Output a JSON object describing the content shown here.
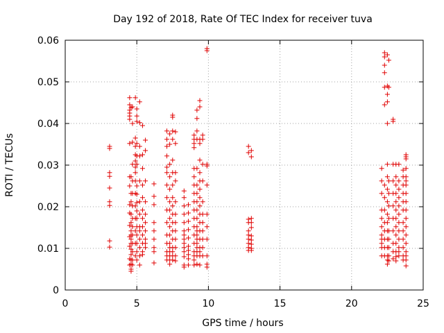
{
  "chart_data": {
    "type": "scatter",
    "title": "Day 192 of 2018, Rate Of TEC Index for receiver tuva",
    "xlabel": "GPS time / hours",
    "ylabel": "ROTI / TECUs",
    "xlim": [
      0,
      25
    ],
    "ylim": [
      0,
      0.06
    ],
    "xticks": [
      0,
      5,
      10,
      15,
      20,
      25
    ],
    "yticks": [
      0,
      0.01,
      0.02,
      0.03,
      0.04,
      0.05,
      0.06
    ],
    "xtick_labels": [
      "0",
      "5",
      "10",
      "15",
      "20",
      "25"
    ],
    "ytick_labels": [
      "0",
      "0.01",
      "0.02",
      "0.03",
      "0.04",
      "0.05",
      "0.06"
    ],
    "grid": true,
    "marker": "+",
    "color": "#e00000",
    "series": [
      {
        "x": [
          3.1,
          3.1,
          3.1,
          3.1,
          3.1,
          3.1,
          3.1,
          3.1,
          3.1,
          4.5,
          4.5,
          4.5,
          4.5,
          4.5,
          4.5,
          4.5,
          4.5,
          4.5,
          4.5,
          4.5,
          4.5,
          4.5,
          4.5,
          4.5,
          4.5,
          4.6,
          4.6,
          4.6,
          4.6,
          4.6,
          4.6,
          4.6,
          4.6,
          4.6,
          4.6,
          4.6,
          4.6,
          4.6,
          4.6,
          4.6,
          4.6,
          4.7,
          4.7,
          4.7,
          4.7,
          4.7,
          4.7,
          4.7,
          4.7,
          4.7,
          4.7,
          4.7,
          4.7,
          4.7,
          4.7,
          4.9,
          4.9,
          4.9,
          4.9,
          4.9,
          4.9,
          4.9,
          4.9,
          4.9,
          4.9,
          4.9,
          4.9,
          4.9,
          4.9,
          5.0,
          5.0,
          5.0,
          5.0,
          5.0,
          5.0,
          5.0,
          5.0,
          5.0,
          5.0,
          5.0,
          5.0,
          5.0,
          5.0,
          5.0,
          5.0,
          5.2,
          5.2,
          5.2,
          5.2,
          5.2,
          5.2,
          5.2,
          5.2,
          5.2,
          5.2,
          5.2,
          5.2,
          5.2,
          5.4,
          5.4,
          5.4,
          5.4,
          5.4,
          5.4,
          5.4,
          5.4,
          5.4,
          5.4,
          5.4,
          5.4,
          5.6,
          5.6,
          5.6,
          5.6,
          5.6,
          5.6,
          5.6,
          5.6,
          5.6,
          5.6,
          6.2,
          6.2,
          6.2,
          6.2,
          6.2,
          6.2,
          6.2,
          6.2,
          6.2,
          7.1,
          7.1,
          7.1,
          7.1,
          7.1,
          7.1,
          7.1,
          7.1,
          7.1,
          7.1,
          7.1,
          7.1,
          7.1,
          7.1,
          7.1,
          7.3,
          7.3,
          7.3,
          7.3,
          7.3,
          7.3,
          7.3,
          7.3,
          7.3,
          7.3,
          7.3,
          7.3,
          7.3,
          7.3,
          7.3,
          7.3,
          7.5,
          7.5,
          7.5,
          7.5,
          7.5,
          7.5,
          7.5,
          7.5,
          7.5,
          7.5,
          7.5,
          7.5,
          7.5,
          7.5,
          7.5,
          7.5,
          7.5,
          7.7,
          7.7,
          7.7,
          7.7,
          7.7,
          7.7,
          7.7,
          7.7,
          7.7,
          7.7,
          7.7,
          7.7,
          8.3,
          8.3,
          8.3,
          8.3,
          8.3,
          8.3,
          8.3,
          8.3,
          8.3,
          8.3,
          8.3,
          8.3,
          8.3,
          8.3,
          8.6,
          8.6,
          8.6,
          8.6,
          8.6,
          8.6,
          8.6,
          8.6,
          8.6,
          8.6,
          9.0,
          9.0,
          9.0,
          9.0,
          9.0,
          9.0,
          9.0,
          9.0,
          9.0,
          9.0,
          9.0,
          9.0,
          9.0,
          9.0,
          9.0,
          9.0,
          9.0,
          9.0,
          9.2,
          9.2,
          9.2,
          9.2,
          9.2,
          9.2,
          9.2,
          9.2,
          9.2,
          9.2,
          9.2,
          9.2,
          9.2,
          9.2,
          9.2,
          9.2,
          9.2,
          9.2,
          9.2,
          9.4,
          9.4,
          9.4,
          9.4,
          9.4,
          9.4,
          9.4,
          9.4,
          9.4,
          9.4,
          9.4,
          9.4,
          9.4,
          9.4,
          9.4,
          9.4,
          9.4,
          9.4,
          9.6,
          9.6,
          9.6,
          9.6,
          9.6,
          9.6,
          9.6,
          9.6,
          9.6,
          9.6,
          9.6,
          9.9,
          9.9,
          9.9,
          9.9,
          9.9,
          9.9,
          9.9,
          9.9,
          9.9,
          9.9,
          9.9,
          12.8,
          12.8,
          12.8,
          12.8,
          12.8,
          12.8,
          12.8,
          12.8,
          12.8,
          12.8,
          13.0,
          13.0,
          13.0,
          13.0,
          13.0,
          13.0,
          13.0,
          13.0,
          13.0,
          13.0,
          22.1,
          22.1,
          22.1,
          22.1,
          22.1,
          22.1,
          22.1,
          22.1,
          22.1,
          22.1,
          22.1,
          22.3,
          22.3,
          22.3,
          22.3,
          22.3,
          22.3,
          22.3,
          22.3,
          22.3,
          22.3,
          22.3,
          22.3,
          22.3,
          22.3,
          22.5,
          22.5,
          22.5,
          22.5,
          22.5,
          22.5,
          22.5,
          22.5,
          22.5,
          22.5,
          22.5,
          22.5,
          22.5,
          22.5,
          22.5,
          22.5,
          22.5,
          22.6,
          22.6,
          22.6,
          22.6,
          22.6,
          22.6,
          22.6,
          22.6,
          22.6,
          22.6,
          22.6,
          22.9,
          22.9,
          22.9,
          22.9,
          22.9,
          22.9,
          22.9,
          22.9,
          22.9,
          22.9,
          22.9,
          23.1,
          23.1,
          23.1,
          23.1,
          23.1,
          23.1,
          23.1,
          23.1,
          23.1,
          23.1,
          23.1,
          23.1,
          23.1,
          23.3,
          23.3,
          23.3,
          23.3,
          23.3,
          23.3,
          23.3,
          23.3,
          23.3,
          23.3,
          23.3,
          23.3,
          23.6,
          23.6,
          23.6,
          23.6,
          23.6,
          23.6,
          23.6,
          23.6,
          23.6,
          23.6,
          23.6,
          23.6,
          23.8,
          23.8,
          23.8,
          23.8,
          23.8,
          23.8,
          23.8,
          23.8,
          23.8,
          23.8,
          23.8,
          23.8,
          23.8,
          23.8,
          23.8,
          23.8,
          23.8,
          23.8
        ],
        "y": [
          0.0345,
          0.034,
          0.0282,
          0.0273,
          0.0245,
          0.0212,
          0.0203,
          0.0118,
          0.0103,
          0.0462,
          0.0445,
          0.0432,
          0.0425,
          0.0418,
          0.041,
          0.0352,
          0.0272,
          0.025,
          0.0205,
          0.0185,
          0.0155,
          0.0128,
          0.0105,
          0.0075,
          0.006,
          0.0438,
          0.0272,
          0.0232,
          0.0212,
          0.0182,
          0.0162,
          0.0142,
          0.0132,
          0.0122,
          0.0112,
          0.0098,
          0.0085,
          0.0072,
          0.0062,
          0.005,
          0.0045,
          0.044,
          0.04,
          0.0355,
          0.0302,
          0.0262,
          0.0232,
          0.0202,
          0.0172,
          0.0152,
          0.0132,
          0.0112,
          0.0092,
          0.0072,
          0.006,
          0.0462,
          0.0365,
          0.0345,
          0.0325,
          0.031,
          0.0295,
          0.0282,
          0.0262,
          0.0232,
          0.0202,
          0.0172,
          0.0142,
          0.0112,
          0.0082,
          0.0435,
          0.0418,
          0.0405,
          0.0352,
          0.0322,
          0.0302,
          0.025,
          0.023,
          0.021,
          0.019,
          0.0172,
          0.0152,
          0.0132,
          0.0112,
          0.0092,
          0.0072,
          0.0452,
          0.0402,
          0.0345,
          0.0322,
          0.0262,
          0.0212,
          0.0182,
          0.0152,
          0.0142,
          0.0122,
          0.0102,
          0.0082,
          0.006,
          0.0395,
          0.0325,
          0.0292,
          0.0252,
          0.0222,
          0.0192,
          0.0172,
          0.0152,
          0.0132,
          0.0112,
          0.0092,
          0.0085,
          0.036,
          0.0335,
          0.0262,
          0.0212,
          0.0182,
          0.0162,
          0.0142,
          0.0122,
          0.0112,
          0.0102,
          0.0255,
          0.0225,
          0.0205,
          0.0162,
          0.0142,
          0.0122,
          0.0102,
          0.0092,
          0.0065,
          0.0382,
          0.0362,
          0.0345,
          0.0322,
          0.0295,
          0.0282,
          0.0252,
          0.0222,
          0.0192,
          0.0162,
          0.0132,
          0.0112,
          0.0092,
          0.0082,
          0.0072,
          0.0375,
          0.035,
          0.0302,
          0.0272,
          0.0242,
          0.0212,
          0.0192,
          0.0172,
          0.0152,
          0.0132,
          0.0112,
          0.0102,
          0.0092,
          0.0082,
          0.0072,
          0.0062,
          0.042,
          0.0415,
          0.0382,
          0.0362,
          0.0312,
          0.0282,
          0.0252,
          0.0222,
          0.0202,
          0.0182,
          0.0162,
          0.0142,
          0.0122,
          0.0102,
          0.0092,
          0.0082,
          0.0072,
          0.038,
          0.0352,
          0.0282,
          0.0262,
          0.0212,
          0.0182,
          0.0162,
          0.0142,
          0.0122,
          0.0102,
          0.0082,
          0.007,
          0.0238,
          0.0222,
          0.0202,
          0.0182,
          0.0162,
          0.0142,
          0.0132,
          0.0122,
          0.0112,
          0.0102,
          0.0092,
          0.008,
          0.006,
          0.0055,
          0.0205,
          0.0185,
          0.0165,
          0.0145,
          0.0125,
          0.0105,
          0.0095,
          0.0085,
          0.0075,
          0.006,
          0.0372,
          0.0362,
          0.0352,
          0.0342,
          0.0292,
          0.0272,
          0.0252,
          0.0232,
          0.0212,
          0.0192,
          0.0172,
          0.0152,
          0.0132,
          0.0112,
          0.0092,
          0.0082,
          0.0072,
          0.006,
          0.0432,
          0.0412,
          0.0382,
          0.0362,
          0.0292,
          0.0252,
          0.0232,
          0.0212,
          0.0192,
          0.0172,
          0.0152,
          0.0142,
          0.0132,
          0.0122,
          0.0112,
          0.0102,
          0.0092,
          0.0082,
          0.0062,
          0.0455,
          0.044,
          0.0362,
          0.0352,
          0.0312,
          0.0282,
          0.0262,
          0.0242,
          0.0222,
          0.0202,
          0.0182,
          0.0162,
          0.0142,
          0.0122,
          0.0102,
          0.0092,
          0.0082,
          0.006,
          0.0372,
          0.0362,
          0.0302,
          0.0262,
          0.0212,
          0.0182,
          0.0162,
          0.0142,
          0.0122,
          0.0102,
          0.0082,
          0.058,
          0.0575,
          0.0302,
          0.0298,
          0.0252,
          0.0182,
          0.0152,
          0.0122,
          0.0082,
          0.0062,
          0.0055,
          0.0345,
          0.033,
          0.017,
          0.0162,
          0.0142,
          0.0132,
          0.0122,
          0.0112,
          0.0102,
          0.0095,
          0.0335,
          0.032,
          0.0172,
          0.0162,
          0.015,
          0.013,
          0.012,
          0.011,
          0.01,
          0.0095,
          0.0292,
          0.0262,
          0.0232,
          0.0192,
          0.0172,
          0.0152,
          0.0132,
          0.0122,
          0.0112,
          0.0102,
          0.0082,
          0.057,
          0.056,
          0.054,
          0.0522,
          0.0487,
          0.0445,
          0.0252,
          0.0222,
          0.0192,
          0.0162,
          0.0142,
          0.0122,
          0.0102,
          0.0082,
          0.0565,
          0.049,
          0.047,
          0.0452,
          0.04,
          0.0302,
          0.0272,
          0.0242,
          0.0212,
          0.0182,
          0.0162,
          0.0142,
          0.0122,
          0.0102,
          0.0082,
          0.0072,
          0.0062,
          0.0552,
          0.0487,
          0.0262,
          0.0232,
          0.0202,
          0.0172,
          0.0142,
          0.0122,
          0.0102,
          0.0082,
          0.007,
          0.041,
          0.0405,
          0.0302,
          0.0262,
          0.0232,
          0.0202,
          0.0172,
          0.0142,
          0.0112,
          0.0092,
          0.0075,
          0.0302,
          0.0272,
          0.0252,
          0.0232,
          0.0212,
          0.0192,
          0.0172,
          0.0152,
          0.0132,
          0.0112,
          0.0092,
          0.008,
          0.007,
          0.0302,
          0.0262,
          0.0242,
          0.0222,
          0.0202,
          0.0182,
          0.0162,
          0.0142,
          0.0122,
          0.0102,
          0.0092,
          0.0082,
          0.0288,
          0.0272,
          0.0252,
          0.0232,
          0.0212,
          0.0192,
          0.0162,
          0.0142,
          0.0122,
          0.0102,
          0.0082,
          0.0072,
          0.0325,
          0.032,
          0.0315,
          0.0292,
          0.0272,
          0.0262,
          0.0252,
          0.0232,
          0.0212,
          0.0192,
          0.0172,
          0.0152,
          0.0132,
          0.0112,
          0.0092,
          0.0082,
          0.0072,
          0.0058
        ]
      }
    ]
  }
}
